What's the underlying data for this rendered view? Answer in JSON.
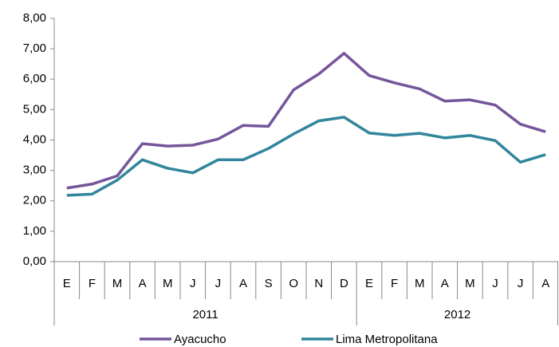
{
  "chart_data": {
    "type": "line",
    "categories": [
      "E",
      "F",
      "M",
      "A",
      "M",
      "J",
      "J",
      "A",
      "S",
      "O",
      "N",
      "D",
      "E",
      "F",
      "M",
      "A",
      "M",
      "J",
      "J",
      "A"
    ],
    "groups": [
      {
        "label": "2011",
        "count": 12
      },
      {
        "label": "2012",
        "count": 8
      }
    ],
    "series": [
      {
        "name": "Ayacucho",
        "color": "#76569b",
        "values": [
          2.42,
          2.55,
          2.82,
          3.88,
          3.8,
          3.83,
          4.03,
          4.48,
          4.45,
          5.65,
          6.17,
          6.85,
          6.12,
          5.88,
          5.68,
          5.28,
          5.32,
          5.15,
          4.52,
          4.27
        ]
      },
      {
        "name": "Lima Metropolitana",
        "color": "#31869b",
        "values": [
          2.18,
          2.22,
          2.68,
          3.35,
          3.07,
          2.92,
          3.35,
          3.35,
          3.72,
          4.2,
          4.63,
          4.75,
          4.23,
          4.15,
          4.22,
          4.07,
          4.15,
          3.98,
          3.27,
          3.52
        ]
      }
    ],
    "ylim": [
      0,
      8
    ],
    "yticks": [
      {
        "value": 0,
        "label": "0,00"
      },
      {
        "value": 1,
        "label": "1,00"
      },
      {
        "value": 2,
        "label": "2,00"
      },
      {
        "value": 3,
        "label": "3,00"
      },
      {
        "value": 4,
        "label": "4,00"
      },
      {
        "value": 5,
        "label": "5,00"
      },
      {
        "value": 6,
        "label": "6,00"
      },
      {
        "value": 7,
        "label": "7,00"
      },
      {
        "value": 8,
        "label": "8,00"
      }
    ],
    "grid": false,
    "legend": "bottom"
  }
}
